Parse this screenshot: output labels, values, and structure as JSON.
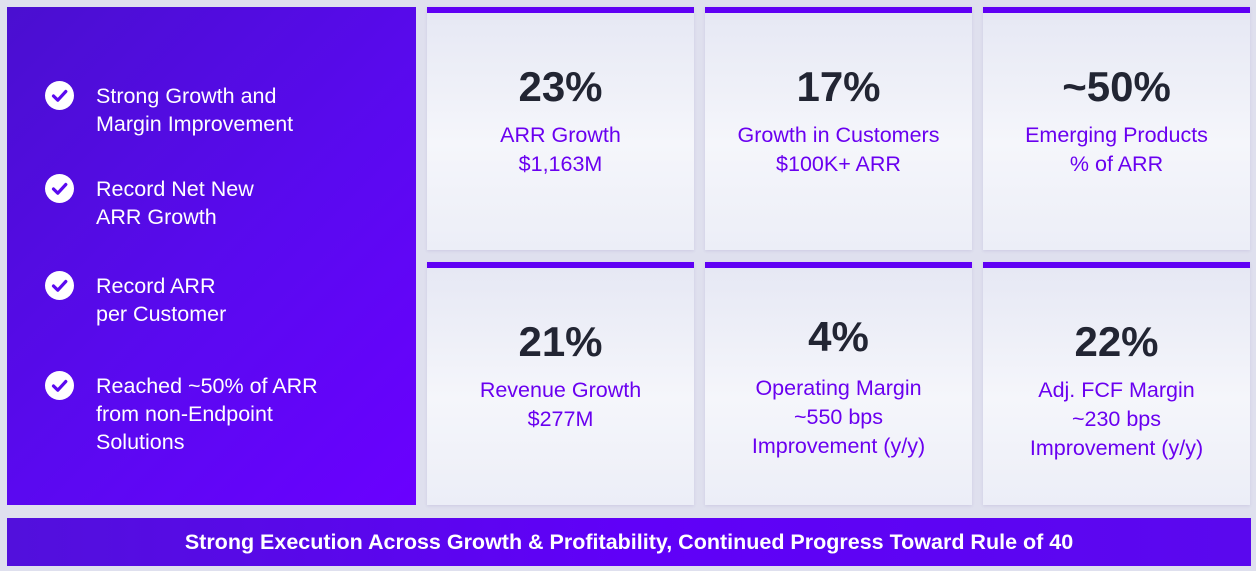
{
  "highlights": [
    {
      "icon": "check-circle-icon",
      "text": "Strong Growth and\nMargin Improvement"
    },
    {
      "icon": "check-circle-icon",
      "text": "Record Net New\nARR Growth"
    },
    {
      "icon": "check-circle-icon",
      "text": "Record ARR\nper Customer"
    },
    {
      "icon": "check-circle-icon",
      "text": "Reached ~50% of ARR\nfrom non-Endpoint\nSolutions"
    }
  ],
  "cards": [
    {
      "metric": "23%",
      "description": "ARR Growth\n$1,163M"
    },
    {
      "metric": "17%",
      "description": "Growth in Customers\n$100K+ ARR"
    },
    {
      "metric": "~50%",
      "description": "Emerging Products\n% of ARR"
    },
    {
      "metric": "21%",
      "description": "Revenue Growth\n$277M"
    },
    {
      "metric": "4%",
      "description": "Operating Margin\n~550 bps\nImprovement (y/y)"
    },
    {
      "metric": "22%",
      "description": "Adj. FCF Margin\n~230 bps\nImprovement (y/y)"
    }
  ],
  "banner": {
    "text": "Strong Execution Across Growth & Profitability, Continued Progress Toward Rule of 40"
  },
  "colors": {
    "accent": "#6000f4",
    "metric_text": "#222533",
    "description_text": "#6a00f0",
    "panel": "#5a09f0"
  }
}
